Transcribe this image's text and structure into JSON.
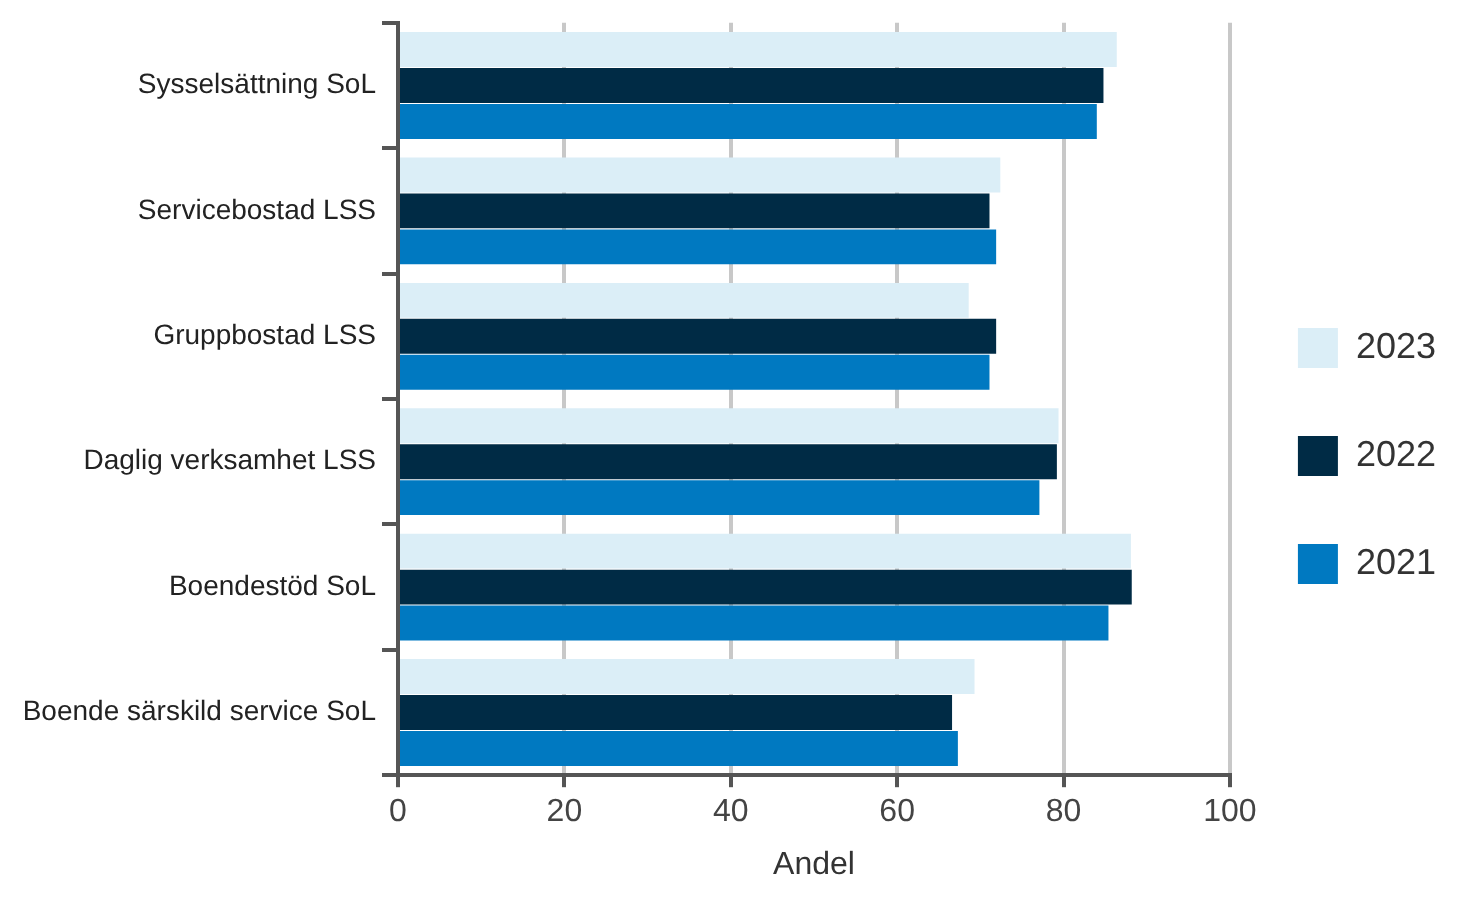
{
  "chart_data": {
    "type": "bar",
    "orientation": "horizontal",
    "xlabel": "Andel",
    "categories": [
      "Sysselsättning SoL",
      "Servicebostad LSS",
      "Gruppbostad LSS",
      "Daglig verksamhet LSS",
      "Boendestöd SoL",
      "Boende särskild service SoL"
    ],
    "series": [
      {
        "name": "2023",
        "color": "#dbeef7",
        "values": [
          86.4,
          72.4,
          68.6,
          79.4,
          88.1,
          69.3
        ]
      },
      {
        "name": "2022",
        "color": "#002b45",
        "values": [
          84.8,
          71.1,
          71.9,
          79.2,
          88.2,
          66.6
        ]
      },
      {
        "name": "2021",
        "color": "#0079c1",
        "values": [
          84.0,
          71.9,
          71.1,
          77.1,
          85.4,
          67.3
        ]
      }
    ],
    "xlim": [
      0,
      100
    ],
    "xticks": [
      0,
      20,
      40,
      60,
      80,
      100
    ],
    "grid": "x",
    "legend": "right"
  }
}
